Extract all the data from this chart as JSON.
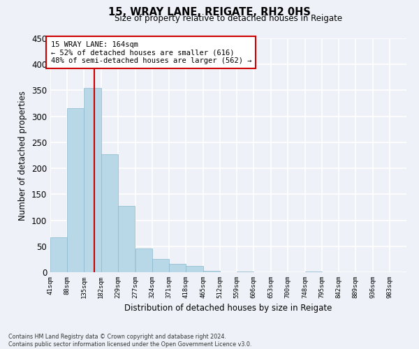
{
  "title": "15, WRAY LANE, REIGATE, RH2 0HS",
  "subtitle": "Size of property relative to detached houses in Reigate",
  "xlabel": "Distribution of detached houses by size in Reigate",
  "ylabel": "Number of detached properties",
  "bar_color": "#b8d8e8",
  "bar_edge_color": "#8ab8cc",
  "background_color": "#eef2f8",
  "grid_color": "#ffffff",
  "bins": [
    41,
    88,
    135,
    182,
    229,
    277,
    324,
    371,
    418,
    465,
    512,
    559,
    606,
    653,
    700,
    748,
    795,
    842,
    889,
    936,
    983
  ],
  "counts": [
    67,
    316,
    354,
    227,
    128,
    46,
    25,
    16,
    12,
    3,
    0,
    1,
    0,
    0,
    0,
    1,
    0,
    0,
    0,
    0
  ],
  "tick_labels": [
    "41sqm",
    "88sqm",
    "135sqm",
    "182sqm",
    "229sqm",
    "277sqm",
    "324sqm",
    "371sqm",
    "418sqm",
    "465sqm",
    "512sqm",
    "559sqm",
    "606sqm",
    "653sqm",
    "700sqm",
    "748sqm",
    "795sqm",
    "842sqm",
    "889sqm",
    "936sqm",
    "983sqm"
  ],
  "property_line_x": 164,
  "property_line_color": "#cc0000",
  "annotation_line1": "15 WRAY LANE: 164sqm",
  "annotation_line2": "← 52% of detached houses are smaller (616)",
  "annotation_line3": "48% of semi-detached houses are larger (562) →",
  "ylim": [
    0,
    450
  ],
  "yticks": [
    0,
    50,
    100,
    150,
    200,
    250,
    300,
    350,
    400,
    450
  ],
  "footnote": "Contains HM Land Registry data © Crown copyright and database right 2024.\nContains public sector information licensed under the Open Government Licence v3.0."
}
